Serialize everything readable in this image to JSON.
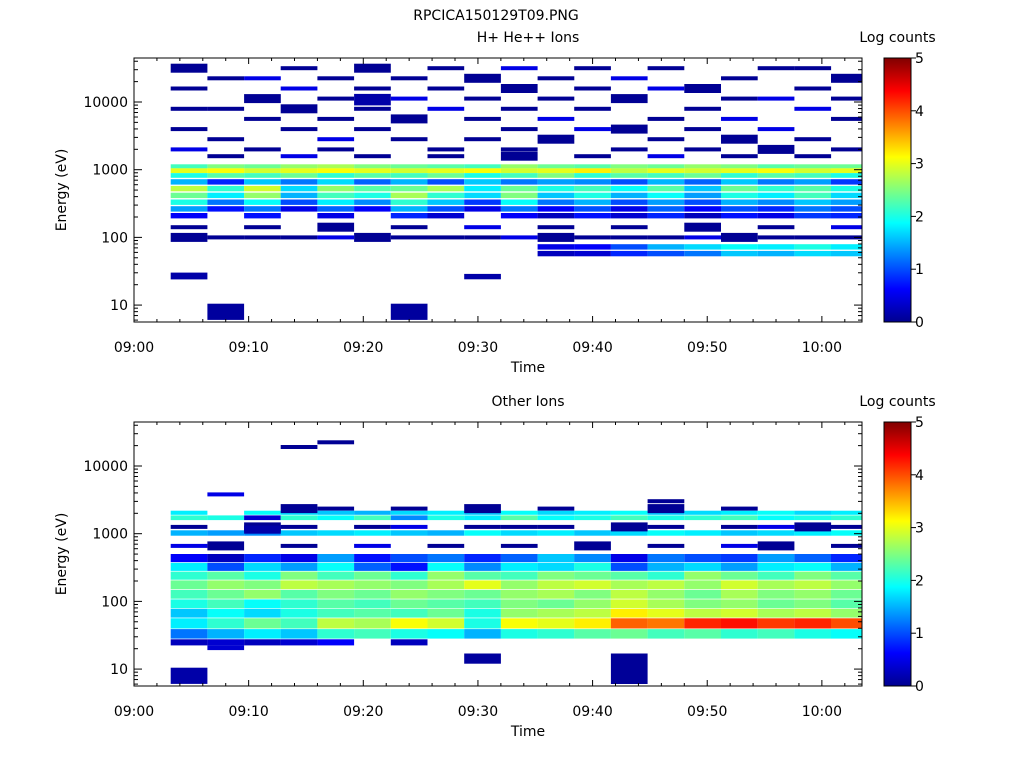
{
  "figure": {
    "title": "RPCICA150129T09.PNG"
  },
  "chart_data": [
    {
      "type": "heatmap",
      "title": "H+ He++ Ions",
      "xlabel": "Time",
      "ylabel": "Energy (eV)",
      "colorbar_label": "Log counts",
      "x_ticks": [
        "09:00",
        "09:10",
        "09:20",
        "09:30",
        "09:40",
        "09:50",
        "10:00"
      ],
      "y_ticks": [
        "10",
        "100",
        "1000",
        "10000"
      ],
      "colorbar_ticks": [
        "0",
        "1",
        "2",
        "3",
        "4",
        "5"
      ],
      "xlim_minutes": [
        0,
        63.5
      ],
      "ylim_log10": [
        0.75,
        4.65
      ],
      "zlim": [
        0,
        5
      ],
      "y_scale": "log",
      "time_bins_minutes": [
        3.2,
        6.4,
        9.6,
        12.8,
        16.0,
        19.2,
        22.4,
        25.6,
        28.8,
        32.0,
        35.2,
        38.4,
        41.6,
        44.8,
        48.0,
        51.2,
        54.4,
        57.6,
        60.8
      ],
      "bands": [
        {
          "y": [
            3.02,
            3.08
          ],
          "v": [
            2.2,
            2.5,
            2.4,
            2.6,
            2.7,
            2.5,
            2.4,
            2.3,
            2.2,
            2.6,
            2.4,
            2.3,
            2.5,
            2.4,
            2.6,
            2.5,
            2.3,
            2.4,
            2.4
          ]
        },
        {
          "y": [
            2.95,
            3.02
          ],
          "v": [
            3.0,
            3.1,
            2.9,
            3.0,
            3.1,
            3.0,
            2.9,
            3.0,
            3.1,
            2.9,
            3.0,
            3.2,
            2.8,
            3.0,
            2.9,
            3.0,
            3.1,
            2.9,
            3.0
          ]
        },
        {
          "y": [
            2.88,
            2.95
          ],
          "v": [
            2.0,
            2.3,
            2.2,
            2.4,
            2.1,
            2.3,
            2.2,
            2.4,
            2.0,
            2.2,
            2.5,
            2.1,
            2.3,
            2.2,
            2.4,
            2.1,
            2.3,
            2.2,
            2.0
          ]
        },
        {
          "y": [
            2.78,
            2.86
          ],
          "v": [
            1.5,
            0.8,
            1.6,
            1.2,
            1.7,
            1.1,
            1.5,
            1.0,
            1.6,
            1.2,
            1.4,
            1.3,
            1.0,
            1.5,
            1.1,
            1.6,
            1.2,
            1.4,
            0.9
          ]
        },
        {
          "y": [
            2.68,
            2.76
          ],
          "v": [
            2.8,
            2.1,
            2.9,
            1.7,
            2.6,
            2.3,
            2.4,
            2.7,
            1.8,
            2.4,
            2.0,
            2.2,
            1.9,
            2.3,
            1.6,
            2.4,
            2.1,
            2.3,
            2.0
          ]
        },
        {
          "y": [
            2.58,
            2.66
          ],
          "v": [
            2.4,
            1.8,
            2.6,
            1.5,
            2.2,
            2.0,
            2.7,
            2.1,
            1.7,
            2.5,
            1.6,
            2.0,
            1.5,
            1.9,
            1.4,
            2.0,
            1.8,
            2.2,
            1.7
          ]
        },
        {
          "y": [
            2.48,
            2.56
          ],
          "v": [
            2.0,
            1.2,
            1.9,
            1.0,
            1.8,
            1.3,
            2.1,
            1.6,
            0.9,
            1.9,
            1.2,
            1.5,
            1.0,
            1.4,
            1.0,
            1.5,
            1.3,
            1.6,
            1.4
          ]
        },
        {
          "y": [
            2.38,
            2.46
          ],
          "v": [
            1.4,
            0.7,
            1.2,
            0.5,
            1.1,
            0.6,
            1.5,
            1.0,
            0.5,
            1.2,
            0.6,
            1.0,
            0.5,
            1.1,
            0.6,
            1.0,
            0.8,
            1.2,
            1.0
          ]
        },
        {
          "y": [
            2.28,
            2.36
          ],
          "v": [
            0.6,
            0.0,
            0.7,
            0.0,
            0.5,
            0.0,
            0.8,
            0.4,
            0.0,
            0.6,
            0.3,
            0.7,
            0.4,
            0.8,
            0.3,
            0.7,
            0.5,
            0.9,
            0.8
          ]
        },
        {
          "y": [
            1.82,
            1.9
          ],
          "v": [
            0.0,
            0.0,
            0.0,
            0.0,
            0.0,
            0.0,
            0.0,
            0.0,
            0.0,
            0.0,
            0.5,
            0.6,
            1.0,
            1.5,
            1.7,
            1.9,
            1.8,
            2.0,
            1.8
          ]
        },
        {
          "y": [
            1.72,
            1.8
          ],
          "v": [
            0.0,
            0.0,
            0.0,
            0.0,
            0.0,
            0.0,
            0.0,
            0.0,
            0.0,
            0.0,
            0.3,
            0.4,
            0.8,
            1.0,
            1.2,
            1.6,
            1.5,
            1.7,
            1.6
          ]
        },
        {
          "y": [
            1.62,
            1.7
          ],
          "v": [
            0.0,
            0.0,
            0.0,
            0.0,
            0.0,
            0.0,
            0.0,
            0.0,
            0.0,
            0.0,
            0.0,
            0.0,
            0.0,
            0.0,
            0.0,
            0.0,
            0.0,
            0.0,
            0.0
          ]
        }
      ],
      "sparse_lines": [
        [
          2.0,
          0,
          1,
          2,
          3,
          4,
          5,
          6,
          7,
          8,
          9,
          10,
          11,
          12,
          13,
          14,
          15,
          16,
          17,
          18
        ],
        [
          2.15,
          0,
          2,
          4,
          6,
          8,
          10,
          12,
          14,
          16,
          18
        ],
        [
          3.2,
          1,
          3,
          5,
          7,
          9,
          11,
          13,
          15,
          17
        ],
        [
          3.3,
          0,
          2,
          4,
          7,
          9,
          12,
          14,
          16,
          18
        ],
        [
          3.45,
          1,
          4,
          6,
          8,
          10,
          13,
          15,
          17
        ],
        [
          3.6,
          0,
          3,
          5,
          9,
          11,
          12,
          14,
          16
        ],
        [
          3.75,
          2,
          4,
          6,
          8,
          10,
          13,
          15,
          18
        ],
        [
          3.9,
          0,
          1,
          3,
          5,
          7,
          9,
          11,
          14,
          17
        ],
        [
          4.05,
          2,
          4,
          6,
          8,
          10,
          12,
          15,
          16,
          18
        ],
        [
          4.2,
          0,
          3,
          5,
          7,
          9,
          11,
          13,
          14,
          17
        ],
        [
          4.35,
          1,
          2,
          4,
          6,
          8,
          10,
          12,
          15,
          18
        ],
        [
          4.5,
          0,
          3,
          5,
          7,
          9,
          11,
          13,
          16,
          17
        ]
      ],
      "blocks": [
        {
          "t": [
            3.2,
            6.4
          ],
          "y": [
            1.38,
            1.48
          ],
          "v": 0.2
        },
        {
          "t": [
            6.4,
            9.6
          ],
          "y": [
            0.78,
            1.02
          ],
          "v": 0.15
        },
        {
          "t": [
            22.4,
            25.6
          ],
          "y": [
            0.78,
            1.02
          ],
          "v": 0.15
        },
        {
          "t": [
            28.8,
            32.0
          ],
          "y": [
            1.38,
            1.46
          ],
          "v": 0.2
        },
        {
          "t": [
            19.2,
            22.4
          ],
          "y": [
            3.95,
            4.12
          ],
          "v": 0.2
        }
      ]
    },
    {
      "type": "heatmap",
      "title": "Other Ions",
      "xlabel": "Time",
      "ylabel": "Energy (eV)",
      "colorbar_label": "Log counts",
      "x_ticks": [
        "09:00",
        "09:10",
        "09:20",
        "09:30",
        "09:40",
        "09:50",
        "10:00"
      ],
      "y_ticks": [
        "10",
        "100",
        "1000",
        "10000"
      ],
      "colorbar_ticks": [
        "0",
        "1",
        "2",
        "3",
        "4",
        "5"
      ],
      "xlim_minutes": [
        0,
        63.5
      ],
      "ylim_log10": [
        0.75,
        4.65
      ],
      "zlim": [
        0,
        5
      ],
      "y_scale": "log",
      "time_bins_minutes": [
        3.2,
        6.4,
        9.6,
        12.8,
        16.0,
        19.2,
        22.4,
        25.6,
        28.8,
        32.0,
        35.2,
        38.4,
        41.6,
        44.8,
        48.0,
        51.2,
        54.4,
        57.6,
        60.8
      ],
      "bands": [
        {
          "y": [
            3.28,
            3.34
          ],
          "v": [
            1.8,
            0.0,
            1.9,
            1.7,
            1.6,
            1.5,
            1.7,
            1.8,
            1.6,
            1.9,
            1.7,
            1.8,
            1.9,
            1.6,
            1.7,
            1.8,
            1.9,
            1.7,
            1.8
          ]
        },
        {
          "y": [
            3.2,
            3.27
          ],
          "v": [
            2.1,
            2.0,
            0.4,
            2.1,
            1.9,
            2.2,
            1.3,
            2.0,
            1.8,
            2.3,
            1.9,
            2.0,
            2.2,
            2.0,
            2.1,
            2.2,
            1.9,
            2.0,
            2.1
          ]
        },
        {
          "y": [
            2.97,
            3.05
          ],
          "v": [
            1.5,
            1.4,
            1.3,
            1.6,
            1.7,
            1.8,
            1.6,
            1.5,
            1.9,
            1.7,
            1.8,
            1.6,
            1.7,
            1.9,
            1.8,
            1.6,
            1.7,
            1.8,
            1.9
          ]
        },
        {
          "y": [
            2.58,
            2.7
          ],
          "v": [
            0.6,
            0.3,
            0.8,
            0.5,
            1.4,
            0.7,
            1.0,
            1.2,
            0.8,
            1.1,
            1.6,
            1.3,
            0.5,
            1.2,
            1.0,
            0.9,
            1.4,
            1.1,
            0.8
          ]
        },
        {
          "y": [
            2.45,
            2.57
          ],
          "v": [
            1.8,
            1.0,
            1.7,
            1.4,
            1.9,
            1.1,
            0.7,
            1.9,
            1.3,
            1.8,
            1.7,
            2.0,
            1.0,
            1.5,
            1.7,
            1.4,
            1.8,
            1.9,
            1.5
          ]
        },
        {
          "y": [
            2.32,
            2.44
          ],
          "v": [
            2.1,
            2.3,
            2.0,
            2.5,
            2.2,
            2.4,
            2.1,
            2.6,
            2.3,
            2.2,
            2.5,
            2.4,
            2.3,
            2.1,
            2.6,
            2.4,
            2.2,
            2.5,
            2.3
          ]
        },
        {
          "y": [
            2.18,
            2.31
          ],
          "v": [
            2.4,
            2.6,
            2.5,
            2.8,
            2.7,
            2.6,
            2.5,
            2.7,
            3.0,
            2.6,
            2.8,
            2.9,
            2.7,
            2.8,
            2.6,
            2.9,
            2.7,
            2.8,
            2.6
          ]
        },
        {
          "y": [
            2.04,
            2.17
          ],
          "v": [
            2.2,
            2.4,
            2.6,
            2.3,
            2.5,
            2.4,
            2.6,
            2.5,
            2.4,
            2.6,
            2.7,
            2.5,
            2.8,
            2.6,
            2.4,
            2.7,
            2.5,
            2.6,
            2.4
          ]
        },
        {
          "y": [
            1.9,
            2.03
          ],
          "v": [
            2.0,
            2.2,
            1.9,
            2.1,
            2.3,
            2.2,
            2.4,
            2.3,
            2.2,
            2.5,
            2.4,
            2.6,
            2.9,
            2.7,
            2.5,
            2.6,
            2.4,
            2.5,
            2.3
          ]
        },
        {
          "y": [
            1.76,
            1.89
          ],
          "v": [
            1.6,
            1.9,
            1.7,
            2.0,
            2.2,
            2.3,
            2.2,
            2.4,
            2.0,
            2.6,
            2.7,
            2.8,
            3.2,
            3.0,
            2.8,
            2.9,
            2.7,
            2.8,
            2.6
          ]
        },
        {
          "y": [
            1.6,
            1.75
          ],
          "v": [
            1.8,
            2.1,
            2.4,
            2.2,
            2.8,
            2.7,
            3.1,
            2.9,
            2.0,
            3.1,
            3.0,
            3.2,
            3.9,
            3.8,
            4.2,
            4.3,
            4.1,
            4.2,
            4.0
          ]
        },
        {
          "y": [
            1.45,
            1.59
          ],
          "v": [
            1.2,
            1.5,
            1.8,
            1.6,
            2.1,
            2.2,
            2.0,
            1.9,
            1.5,
            2.0,
            2.1,
            2.3,
            2.4,
            2.2,
            2.3,
            2.1,
            2.2,
            2.0,
            1.9
          ]
        },
        {
          "y": [
            1.35,
            1.44
          ],
          "v": [
            0.3,
            0.4,
            0.3,
            0.4,
            0.6,
            0.0,
            0.3,
            0.0,
            0.0,
            0.0,
            0.0,
            0.0,
            0.0,
            0.0,
            0.0,
            0.0,
            0.0,
            0.0,
            0.0
          ]
        }
      ],
      "sparse_lines": [
        [
          3.58,
          1
        ],
        [
          4.28,
          3
        ],
        [
          4.35,
          4
        ],
        [
          3.1,
          0,
          2,
          3,
          5,
          6,
          8,
          9,
          10,
          12,
          13,
          15,
          16,
          17,
          18
        ],
        [
          3.37,
          3,
          4,
          6,
          8,
          10,
          13,
          15
        ],
        [
          2.82,
          0,
          1,
          3,
          5,
          7,
          9,
          11,
          13,
          15,
          16,
          18
        ],
        [
          3.48,
          13
        ]
      ],
      "blocks": [
        {
          "t": [
            3.2,
            6.4
          ],
          "y": [
            0.78,
            1.02
          ],
          "v": 0.2
        },
        {
          "t": [
            28.8,
            32.0
          ],
          "y": [
            1.08,
            1.23
          ],
          "v": 0.15
        },
        {
          "t": [
            41.6,
            44.8
          ],
          "y": [
            0.78,
            1.23
          ],
          "v": 0.12
        },
        {
          "t": [
            6.4,
            9.6
          ],
          "y": [
            1.28,
            1.35
          ],
          "v": 0.4
        },
        {
          "t": [
            9.6,
            12.8
          ],
          "y": [
            3.0,
            3.12
          ],
          "v": 0.2
        }
      ]
    }
  ]
}
